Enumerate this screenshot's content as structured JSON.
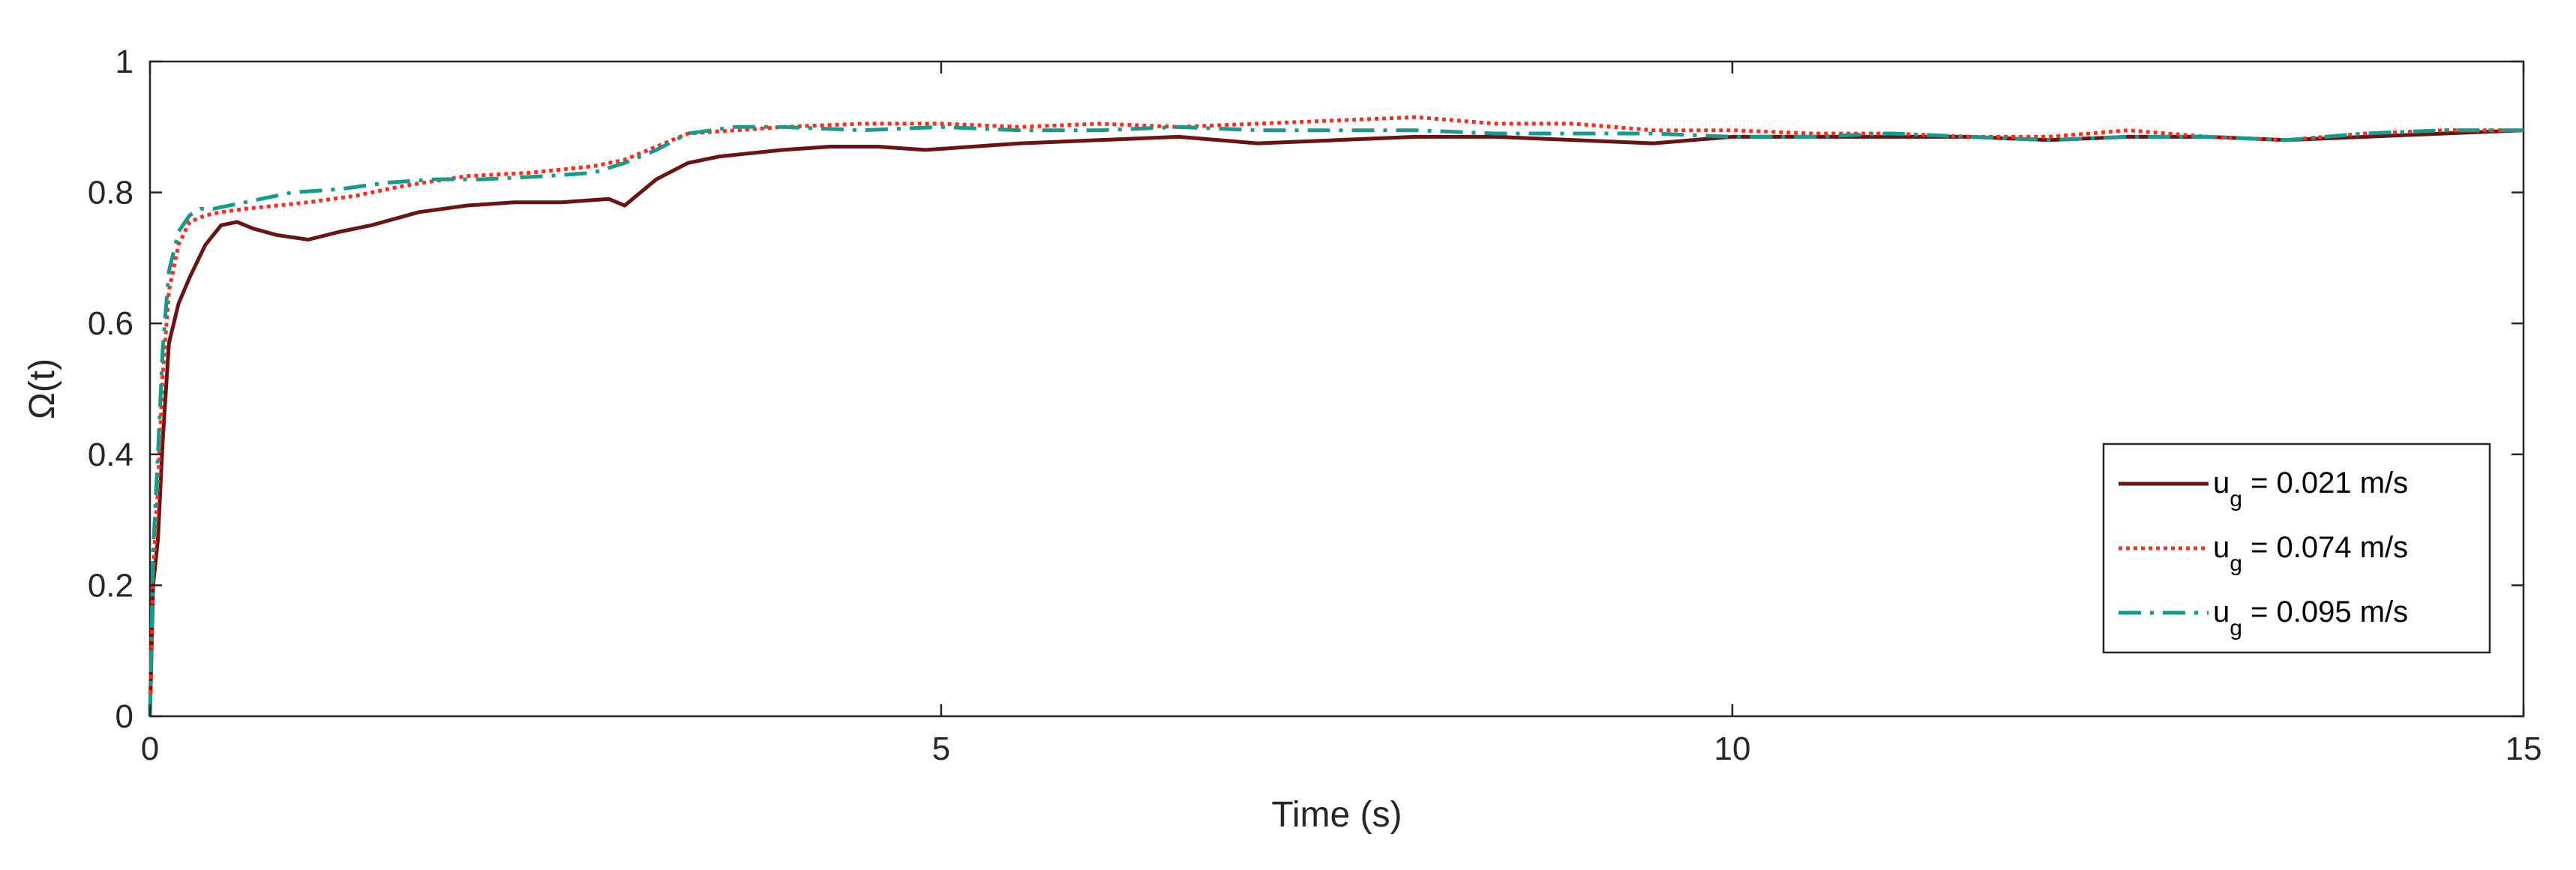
{
  "chart_data": {
    "type": "line",
    "xlabel": "Time (s)",
    "ylabel": "Ω(t)",
    "xlim": [
      0,
      15
    ],
    "ylim": [
      0,
      1
    ],
    "xticks": [
      "0",
      "5",
      "10",
      "15"
    ],
    "yticks": [
      "0",
      "0.2",
      "0.4",
      "0.6",
      "0.8",
      "1"
    ],
    "grid": false,
    "legend_position": "lower-right",
    "series": [
      {
        "legend_main": "u",
        "legend_sub": "g",
        "legend_rest": " = 0.021 m/s",
        "color": "#6b1414",
        "style": "solid",
        "x": [
          0,
          0.02,
          0.05,
          0.08,
          0.12,
          0.18,
          0.25,
          0.35,
          0.45,
          0.55,
          0.65,
          0.8,
          1.0,
          1.2,
          1.4,
          1.7,
          2.0,
          2.3,
          2.6,
          2.9,
          3.0,
          3.2,
          3.4,
          3.6,
          3.8,
          4.0,
          4.3,
          4.6,
          4.9,
          5.2,
          5.5,
          6.0,
          6.5,
          7.0,
          7.5,
          8.0,
          8.5,
          9.0,
          9.5,
          10.0,
          10.5,
          11.0,
          11.5,
          12.0,
          12.5,
          13.0,
          13.5,
          14.0,
          14.5,
          15.0
        ],
        "y": [
          0,
          0.2,
          0.27,
          0.42,
          0.57,
          0.63,
          0.67,
          0.72,
          0.75,
          0.755,
          0.745,
          0.735,
          0.728,
          0.74,
          0.75,
          0.77,
          0.78,
          0.785,
          0.785,
          0.79,
          0.78,
          0.82,
          0.845,
          0.855,
          0.86,
          0.865,
          0.87,
          0.87,
          0.865,
          0.87,
          0.875,
          0.88,
          0.885,
          0.875,
          0.88,
          0.885,
          0.885,
          0.88,
          0.875,
          0.885,
          0.885,
          0.885,
          0.885,
          0.88,
          0.885,
          0.885,
          0.88,
          0.885,
          0.89,
          0.895
        ]
      },
      {
        "legend_main": "u",
        "legend_sub": "g",
        "legend_rest": " = 0.074 m/s",
        "color": "#ff2a1a",
        "style": "dotted",
        "x": [
          0,
          0.02,
          0.05,
          0.08,
          0.12,
          0.18,
          0.25,
          0.35,
          0.45,
          0.6,
          0.8,
          1.0,
          1.3,
          1.6,
          2.0,
          2.4,
          2.8,
          3.0,
          3.2,
          3.4,
          3.7,
          4.0,
          4.5,
          5.0,
          5.5,
          6.0,
          6.5,
          7.0,
          7.5,
          8.0,
          8.5,
          9.0,
          9.5,
          10.0,
          10.5,
          11.0,
          11.5,
          12.0,
          12.5,
          13.0,
          13.5,
          14.0,
          14.5,
          15.0
        ],
        "y": [
          0,
          0.22,
          0.35,
          0.52,
          0.65,
          0.72,
          0.755,
          0.765,
          0.77,
          0.775,
          0.78,
          0.785,
          0.795,
          0.81,
          0.825,
          0.83,
          0.84,
          0.85,
          0.87,
          0.89,
          0.895,
          0.9,
          0.905,
          0.905,
          0.9,
          0.905,
          0.9,
          0.905,
          0.91,
          0.915,
          0.905,
          0.905,
          0.895,
          0.895,
          0.89,
          0.89,
          0.885,
          0.885,
          0.895,
          0.885,
          0.88,
          0.89,
          0.895,
          0.895
        ]
      },
      {
        "legend_main": "u",
        "legend_sub": "g",
        "legend_rest": " = 0.095 m/s",
        "color": "#159b8c",
        "style": "dashdot",
        "x": [
          0,
          0.02,
          0.05,
          0.08,
          0.12,
          0.18,
          0.25,
          0.32,
          0.4,
          0.5,
          0.7,
          0.9,
          1.2,
          1.5,
          1.8,
          2.1,
          2.5,
          2.8,
          3.0,
          3.2,
          3.4,
          3.7,
          4.0,
          4.5,
          5.0,
          5.5,
          6.0,
          6.5,
          7.0,
          7.5,
          8.0,
          8.5,
          9.0,
          9.5,
          10.0,
          10.5,
          11.0,
          11.5,
          12.0,
          12.5,
          13.0,
          13.5,
          14.0,
          14.5,
          15.0
        ],
        "y": [
          0,
          0.25,
          0.4,
          0.56,
          0.68,
          0.74,
          0.765,
          0.775,
          0.775,
          0.78,
          0.79,
          0.8,
          0.805,
          0.815,
          0.82,
          0.82,
          0.825,
          0.83,
          0.845,
          0.865,
          0.89,
          0.9,
          0.9,
          0.895,
          0.9,
          0.895,
          0.895,
          0.9,
          0.895,
          0.895,
          0.895,
          0.89,
          0.89,
          0.89,
          0.885,
          0.885,
          0.89,
          0.885,
          0.88,
          0.885,
          0.885,
          0.88,
          0.89,
          0.895,
          0.895
        ]
      }
    ]
  }
}
